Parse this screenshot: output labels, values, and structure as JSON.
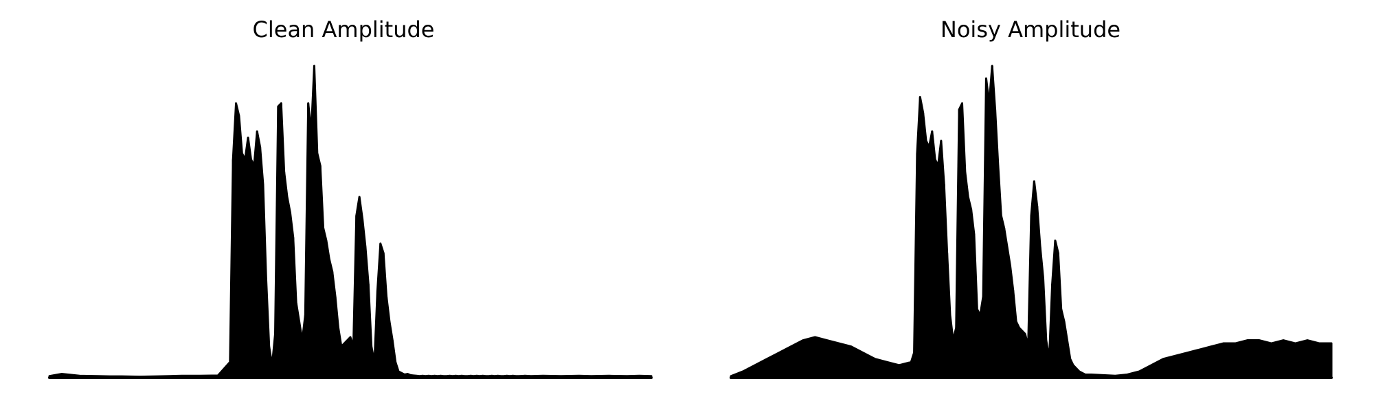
{
  "figure": {
    "background": "#ffffff",
    "stroke_color": "#000000"
  },
  "chart_data": [
    {
      "type": "area",
      "title": "Clean Amplitude",
      "xlabel": "",
      "ylabel": "",
      "axes_visible": false,
      "grid": false,
      "xlim": [
        0,
        1
      ],
      "ylim": [
        0,
        1
      ],
      "x": [
        0.0,
        0.02,
        0.05,
        0.08,
        0.1,
        0.12,
        0.15,
        0.18,
        0.2,
        0.22,
        0.25,
        0.28,
        0.3,
        0.305,
        0.31,
        0.315,
        0.32,
        0.325,
        0.33,
        0.335,
        0.34,
        0.345,
        0.35,
        0.355,
        0.36,
        0.365,
        0.37,
        0.375,
        0.38,
        0.385,
        0.39,
        0.395,
        0.4,
        0.405,
        0.41,
        0.415,
        0.42,
        0.425,
        0.43,
        0.435,
        0.44,
        0.445,
        0.45,
        0.455,
        0.46,
        0.465,
        0.47,
        0.475,
        0.48,
        0.485,
        0.49,
        0.495,
        0.5,
        0.505,
        0.51,
        0.515,
        0.52,
        0.525,
        0.53,
        0.535,
        0.54,
        0.545,
        0.55,
        0.555,
        0.56,
        0.565,
        0.57,
        0.575,
        0.58,
        0.585,
        0.59,
        0.595,
        0.6,
        0.605,
        0.61,
        0.615,
        0.62,
        0.625,
        0.63,
        0.635,
        0.64,
        0.645,
        0.65,
        0.655,
        0.66,
        0.665,
        0.67,
        0.675,
        0.68,
        0.685,
        0.69,
        0.695,
        0.7,
        0.705,
        0.71,
        0.715,
        0.72,
        0.725,
        0.73,
        0.735,
        0.74,
        0.745,
        0.75,
        0.755,
        0.76,
        0.765,
        0.77,
        0.775,
        0.78,
        0.79,
        0.8,
        0.82,
        0.85,
        0.88,
        0.9,
        0.93,
        0.96,
        0.98,
        1.0
      ],
      "values": [
        0.005,
        0.012,
        0.006,
        0.005,
        0.004,
        0.004,
        0.003,
        0.004,
        0.005,
        0.006,
        0.006,
        0.007,
        0.05,
        0.7,
        0.88,
        0.84,
        0.72,
        0.7,
        0.77,
        0.7,
        0.68,
        0.79,
        0.74,
        0.62,
        0.32,
        0.1,
        0.04,
        0.14,
        0.87,
        0.88,
        0.66,
        0.58,
        0.53,
        0.45,
        0.24,
        0.18,
        0.12,
        0.2,
        0.88,
        0.79,
        1.0,
        0.72,
        0.68,
        0.48,
        0.44,
        0.38,
        0.34,
        0.26,
        0.16,
        0.1,
        0.11,
        0.12,
        0.13,
        0.1,
        0.52,
        0.58,
        0.51,
        0.42,
        0.3,
        0.1,
        0.05,
        0.28,
        0.43,
        0.4,
        0.26,
        0.18,
        0.12,
        0.05,
        0.02,
        0.015,
        0.01,
        0.012,
        0.008,
        0.007,
        0.006,
        0.005,
        0.006,
        0.005,
        0.006,
        0.005,
        0.006,
        0.005,
        0.006,
        0.005,
        0.005,
        0.006,
        0.005,
        0.006,
        0.005,
        0.006,
        0.005,
        0.005,
        0.006,
        0.005,
        0.006,
        0.005,
        0.006,
        0.005,
        0.005,
        0.006,
        0.005,
        0.006,
        0.005,
        0.005,
        0.006,
        0.005,
        0.006,
        0.005,
        0.005,
        0.006,
        0.005,
        0.006,
        0.005,
        0.006,
        0.005,
        0.006,
        0.005,
        0.006,
        0.005
      ]
    },
    {
      "type": "area",
      "title": "Noisy Amplitude",
      "xlabel": "",
      "ylabel": "",
      "axes_visible": false,
      "grid": false,
      "xlim": [
        0,
        1
      ],
      "ylim": [
        0,
        1
      ],
      "x": [
        0.0,
        0.02,
        0.04,
        0.06,
        0.08,
        0.1,
        0.12,
        0.14,
        0.16,
        0.18,
        0.2,
        0.22,
        0.24,
        0.26,
        0.28,
        0.3,
        0.305,
        0.31,
        0.315,
        0.32,
        0.325,
        0.33,
        0.335,
        0.34,
        0.345,
        0.35,
        0.355,
        0.36,
        0.365,
        0.37,
        0.375,
        0.38,
        0.385,
        0.39,
        0.395,
        0.4,
        0.405,
        0.41,
        0.415,
        0.42,
        0.425,
        0.43,
        0.435,
        0.44,
        0.445,
        0.45,
        0.455,
        0.46,
        0.465,
        0.47,
        0.475,
        0.48,
        0.485,
        0.49,
        0.495,
        0.5,
        0.505,
        0.51,
        0.515,
        0.52,
        0.525,
        0.53,
        0.535,
        0.54,
        0.545,
        0.55,
        0.555,
        0.56,
        0.565,
        0.57,
        0.575,
        0.58,
        0.585,
        0.59,
        0.6,
        0.62,
        0.64,
        0.66,
        0.68,
        0.7,
        0.72,
        0.74,
        0.76,
        0.78,
        0.8,
        0.82,
        0.84,
        0.86,
        0.88,
        0.9,
        0.92,
        0.94,
        0.96,
        0.98,
        1.0
      ],
      "values": [
        0.005,
        0.02,
        0.04,
        0.06,
        0.08,
        0.1,
        0.12,
        0.13,
        0.12,
        0.11,
        0.1,
        0.08,
        0.06,
        0.05,
        0.04,
        0.05,
        0.08,
        0.72,
        0.9,
        0.85,
        0.76,
        0.74,
        0.79,
        0.7,
        0.68,
        0.76,
        0.62,
        0.4,
        0.2,
        0.12,
        0.16,
        0.86,
        0.88,
        0.66,
        0.58,
        0.54,
        0.46,
        0.22,
        0.2,
        0.26,
        0.96,
        0.88,
        1.0,
        0.86,
        0.68,
        0.52,
        0.48,
        0.42,
        0.36,
        0.28,
        0.18,
        0.16,
        0.15,
        0.14,
        0.1,
        0.52,
        0.63,
        0.55,
        0.42,
        0.32,
        0.12,
        0.06,
        0.3,
        0.44,
        0.4,
        0.22,
        0.18,
        0.12,
        0.06,
        0.04,
        0.03,
        0.02,
        0.015,
        0.01,
        0.01,
        0.008,
        0.006,
        0.01,
        0.02,
        0.04,
        0.06,
        0.07,
        0.08,
        0.09,
        0.1,
        0.11,
        0.11,
        0.12,
        0.12,
        0.11,
        0.12,
        0.11,
        0.12,
        0.11,
        0.11
      ]
    }
  ]
}
